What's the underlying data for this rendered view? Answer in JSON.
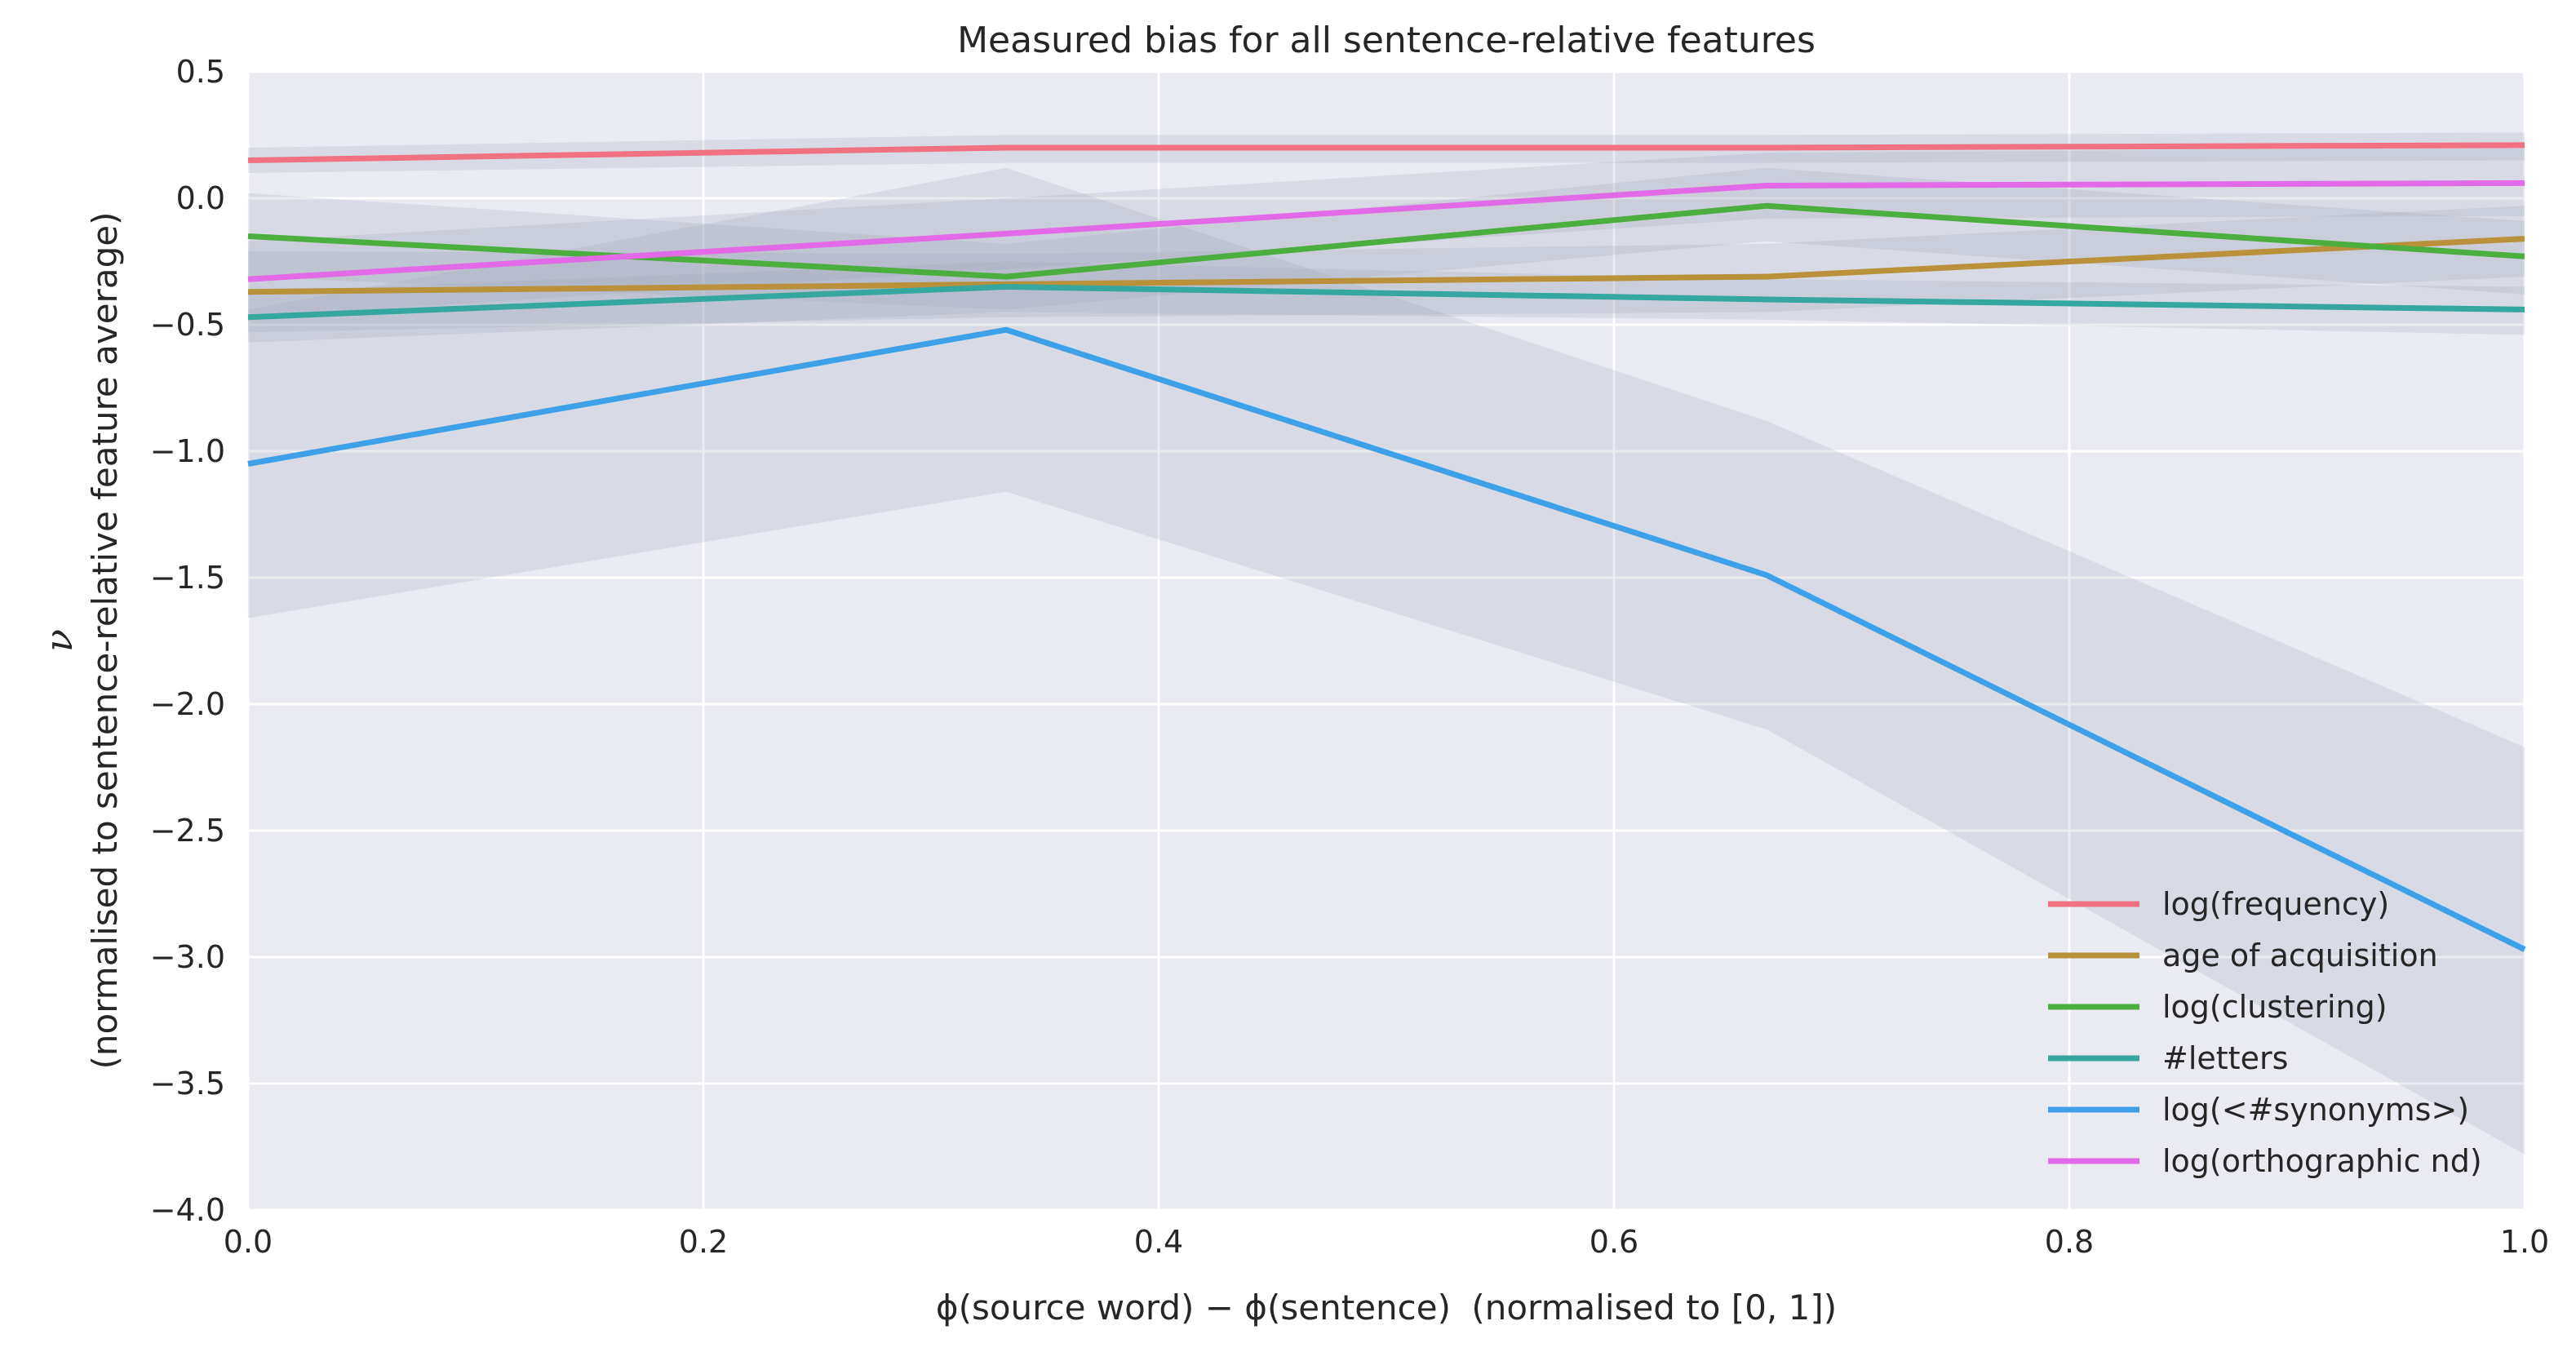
{
  "chart_data": {
    "type": "line",
    "title": "Measured bias for all sentence-relative features",
    "xlabel": {
      "main": "ϕ(source word) − ϕ(sentence)",
      "suffix": "(normalised to [0, 1])"
    },
    "ylabel": {
      "math": "ν",
      "line2": "(normalised to sentence-relative feature average)"
    },
    "xlim": [
      0,
      1
    ],
    "ylim": [
      -4,
      0.5
    ],
    "x_ticks": [
      "0.0",
      "0.2",
      "0.4",
      "0.6",
      "0.8",
      "1.0"
    ],
    "y_ticks": [
      "0.5",
      "0.0",
      "−0.5",
      "−1.0",
      "−1.5",
      "−2.0",
      "−2.5",
      "−3.0",
      "−3.5",
      "−4.0"
    ],
    "x": [
      0,
      0.333,
      0.667,
      1.0
    ],
    "grid": true,
    "legend_position": "lower-right",
    "series": [
      {
        "name": "log(frequency)",
        "color": "#f07282",
        "values": [
          0.15,
          0.2,
          0.2,
          0.21
        ],
        "lower": [
          0.1,
          0.14,
          0.14,
          0.15
        ],
        "upper": [
          0.2,
          0.25,
          0.25,
          0.26
        ]
      },
      {
        "name": "age of acquisition",
        "color": "#b8913a",
        "values": [
          -0.37,
          -0.34,
          -0.31,
          -0.16
        ],
        "lower": [
          -0.53,
          -0.47,
          -0.45,
          -0.31
        ],
        "upper": [
          -0.21,
          -0.22,
          -0.18,
          -0.03
        ]
      },
      {
        "name": "log(clustering)",
        "color": "#4cae3e",
        "values": [
          -0.15,
          -0.31,
          -0.03,
          -0.23
        ],
        "lower": [
          -0.31,
          -0.44,
          -0.17,
          -0.38
        ],
        "upper": [
          0.02,
          -0.18,
          0.12,
          -0.09
        ]
      },
      {
        "name": "#letters",
        "color": "#36a79f",
        "values": [
          -0.47,
          -0.35,
          -0.4,
          -0.44
        ],
        "lower": [
          -0.57,
          -0.45,
          -0.48,
          -0.54
        ],
        "upper": [
          -0.37,
          -0.25,
          -0.32,
          -0.35
        ]
      },
      {
        "name": "log(<#synonyms>)",
        "color": "#3ea1e8",
        "values": [
          -1.05,
          -0.52,
          -1.49,
          -2.97
        ],
        "lower": [
          -1.66,
          -1.16,
          -2.1,
          -3.78
        ],
        "upper": [
          -0.44,
          0.12,
          -0.88,
          -2.17
        ]
      },
      {
        "name": "log(orthographic nd)",
        "color": "#e26ae6",
        "values": [
          -0.32,
          -0.14,
          0.05,
          0.06
        ],
        "lower": [
          -0.47,
          -0.28,
          -0.08,
          -0.07
        ],
        "upper": [
          -0.17,
          0.0,
          0.18,
          0.2
        ]
      }
    ]
  }
}
